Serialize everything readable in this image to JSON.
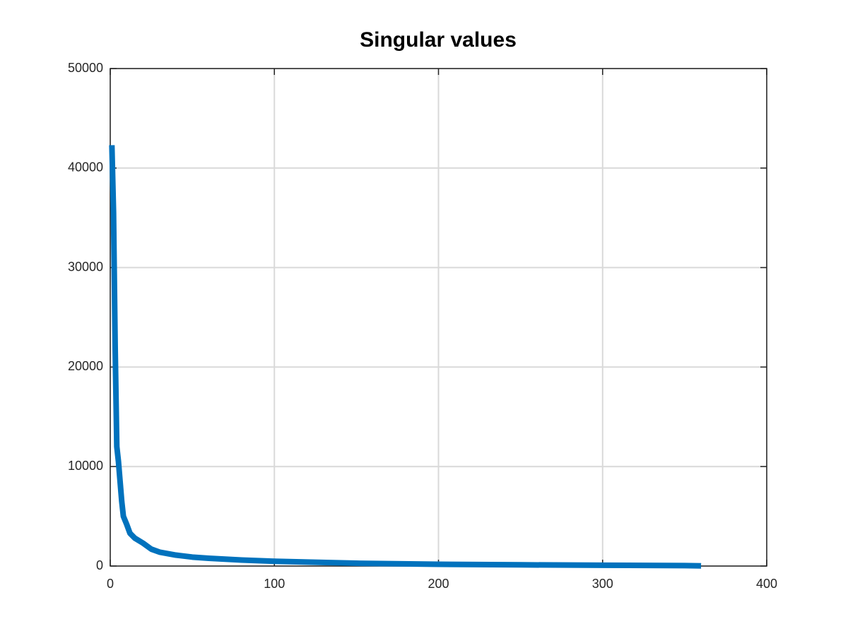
{
  "chart_data": {
    "type": "line",
    "title": "Singular values",
    "x": [
      1,
      2,
      3,
      4,
      5,
      6,
      7,
      8,
      10,
      12,
      15,
      20,
      25,
      30,
      40,
      50,
      60,
      80,
      100,
      120,
      150,
      200,
      250,
      300,
      350,
      360
    ],
    "values": [
      42300,
      35500,
      22000,
      12000,
      10500,
      8500,
      6500,
      5000,
      4200,
      3300,
      2800,
      2300,
      1700,
      1400,
      1100,
      900,
      780,
      600,
      480,
      400,
      280,
      180,
      120,
      80,
      40,
      20
    ],
    "color": "#0072bd",
    "xlim": [
      0,
      400
    ],
    "xticks": [
      0,
      100,
      200,
      300,
      400
    ],
    "ylim": [
      0,
      50000
    ],
    "yticks": [
      0,
      10000,
      20000,
      30000,
      40000,
      50000
    ],
    "grid": true
  }
}
